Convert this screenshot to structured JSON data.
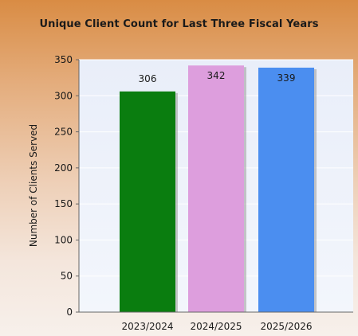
{
  "chart_data": {
    "type": "bar",
    "title": "Unique Client Count for Last Three Fiscal Years",
    "xlabel": "",
    "ylabel": "Number of Clients Served",
    "categories": [
      "2023/2024",
      "2024/2025",
      "2025/2026"
    ],
    "values": [
      306,
      342,
      339
    ],
    "data_labels": [
      "306",
      "342",
      "339"
    ],
    "colors": [
      "#0a7d0f",
      "#dd9edd",
      "#4b8ef0"
    ],
    "ylim": [
      0,
      350
    ],
    "yticks": [
      "0",
      "50",
      "100",
      "150",
      "200",
      "250",
      "300",
      "350"
    ],
    "grid": true,
    "legend": "none"
  }
}
